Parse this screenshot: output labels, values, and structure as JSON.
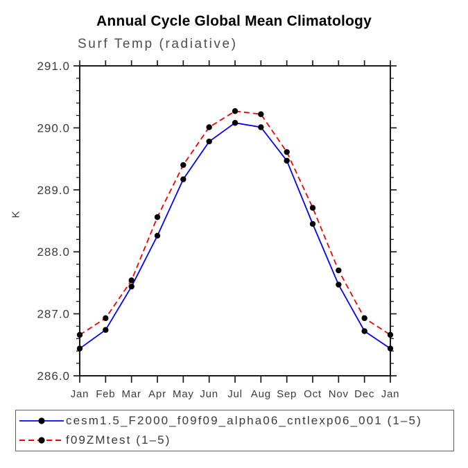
{
  "chart_data": {
    "type": "line",
    "title": "Annual Cycle Global Mean Climatology",
    "subtitle": "Surf Temp (radiative)",
    "ylabel": "K",
    "x_categories": [
      "Jan",
      "Feb",
      "Mar",
      "Apr",
      "May",
      "Jun",
      "Jul",
      "Aug",
      "Sep",
      "Oct",
      "Nov",
      "Dec",
      "Jan"
    ],
    "ylim": [
      286.0,
      291.0
    ],
    "ytick_major": 1.0,
    "ytick_minor": 0.2,
    "ytick_labels": [
      "286.0",
      "287.0",
      "288.0",
      "289.0",
      "290.0",
      "291.0"
    ],
    "grid": false,
    "legend_position": "bottom-left",
    "axis_color": "#1a1a1a",
    "tick_label_color": "#3b3b3b",
    "marker_color": "#000000",
    "series": [
      {
        "name": "cesm1.5_F2000_f09f09_alpha06_cntlexp06_001 (1–5)",
        "color": "#0000ee",
        "line_style": "solid",
        "marker": "filled-circle",
        "values": [
          286.44,
          286.74,
          287.44,
          288.26,
          289.17,
          289.78,
          290.08,
          290.01,
          289.47,
          288.45,
          287.47,
          286.72,
          286.44
        ]
      },
      {
        "name": "f09ZMtest (1–5)",
        "color": "#f20000",
        "line_style": "dashed",
        "marker": "filled-circle",
        "values": [
          286.66,
          286.93,
          287.54,
          288.56,
          289.4,
          290.01,
          290.27,
          290.22,
          289.61,
          288.71,
          287.7,
          286.93,
          286.66
        ]
      }
    ]
  }
}
